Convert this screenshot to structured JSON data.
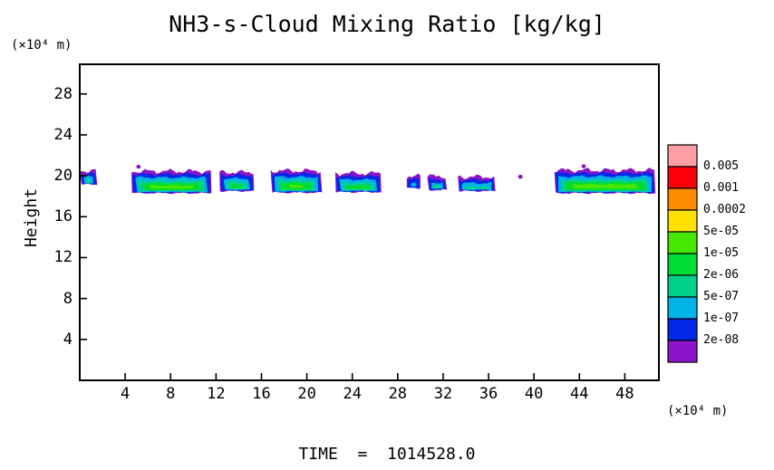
{
  "chart": {
    "title": "NH3-s-Cloud Mixing Ratio [kg/kg]",
    "y_axis_label": "Height",
    "y_unit": "(×10⁴ m)",
    "x_unit": "(×10⁴ m)"
  },
  "footer": {
    "time_label": "TIME  =  1014528.0"
  },
  "chart_data": {
    "type": "heatmap",
    "subtype": "filled-contour-cross-section",
    "title": "NH3-s-Cloud Mixing Ratio [kg/kg]",
    "ylabel": "Height",
    "ylabel_unit": "(×10⁴ m)",
    "xlabel_unit": "(×10⁴ m)",
    "xlim": [
      0,
      51
    ],
    "ylim": [
      0,
      30.9
    ],
    "x_ticks": [
      4,
      8,
      12,
      16,
      20,
      24,
      28,
      32,
      36,
      40,
      44,
      48
    ],
    "y_ticks": [
      4,
      8,
      12,
      16,
      20,
      24,
      28
    ],
    "grid": false,
    "legend": {
      "position": "right",
      "levels_top_to_bottom": [
        "0.005",
        "0.001",
        "0.0002",
        "5e-05",
        "1e-05",
        "2e-06",
        "5e-07",
        "1e-07",
        "2e-08"
      ],
      "colors_top_to_bottom": [
        "#ff9ea5",
        "#fb000c",
        "#ff8c00",
        "#ffe100",
        "#46e700",
        "#00dc32",
        "#00d28c",
        "#00b4e6",
        "#0028e6",
        "#8c14c8"
      ]
    },
    "cloud_layer_styles": [
      {
        "key": "purple",
        "color_index": 9,
        "dx": 0,
        "dtop": 0,
        "dbot": 0,
        "amp": 0.3
      },
      {
        "key": "blue",
        "color_index": 8,
        "dx": 0.1,
        "dtop": 0.3,
        "dbot": 0.05,
        "amp": 0.2
      },
      {
        "key": "cyan",
        "color_index": 7,
        "dx": 0.35,
        "dtop": 0.62,
        "dbot": 0.12,
        "amp": 0.16
      },
      {
        "key": "teal-green",
        "color_index": 6,
        "dx": 0.6,
        "dtop": 0.95,
        "dbot": 0.2,
        "amp": 0.12
      },
      {
        "key": "green",
        "color_index": 5,
        "dx": 0.95,
        "dtop": 1.18,
        "dbot": 0.28,
        "amp": 0.1
      },
      {
        "key": "bright-green",
        "color_index": 4,
        "dx": 1.6,
        "dtop": 1.38,
        "dbot": 0.45,
        "amp": 0.08
      }
    ],
    "cloud_segments": [
      {
        "x0": 0.0,
        "x1": 1.55,
        "y_top": 20.5,
        "y_bot": 19.15,
        "layers": 4,
        "seed": 3
      },
      {
        "x0": 4.55,
        "x1": 11.6,
        "y_top": 20.45,
        "y_bot": 18.3,
        "layers": 6,
        "seed": 7
      },
      {
        "x0": 5.0,
        "x1": 5.35,
        "y_top": 21.0,
        "y_bot": 20.78,
        "layers": 1,
        "seed": 51
      },
      {
        "x0": 12.3,
        "x1": 15.35,
        "y_top": 20.35,
        "y_bot": 18.5,
        "layers": 5,
        "seed": 11
      },
      {
        "x0": 16.8,
        "x1": 21.35,
        "y_top": 20.5,
        "y_bot": 18.35,
        "layers": 6,
        "seed": 17
      },
      {
        "x0": 22.5,
        "x1": 26.55,
        "y_top": 20.25,
        "y_bot": 18.4,
        "layers": 5,
        "seed": 23
      },
      {
        "x0": 28.8,
        "x1": 30.0,
        "y_top": 19.95,
        "y_bot": 18.8,
        "layers": 4,
        "seed": 29
      },
      {
        "x0": 30.6,
        "x1": 32.35,
        "y_top": 19.95,
        "y_bot": 18.6,
        "layers": 5,
        "seed": 31
      },
      {
        "x0": 33.3,
        "x1": 36.6,
        "y_top": 19.9,
        "y_bot": 18.5,
        "layers": 5,
        "seed": 37
      },
      {
        "x0": 38.6,
        "x1": 39.0,
        "y_top": 20.05,
        "y_bot": 19.75,
        "layers": 1,
        "seed": 41
      },
      {
        "x0": 41.8,
        "x1": 50.7,
        "y_top": 20.55,
        "y_bot": 18.3,
        "layers": 6,
        "seed": 43
      },
      {
        "x0": 44.2,
        "x1": 44.55,
        "y_top": 21.05,
        "y_bot": 20.82,
        "layers": 1,
        "seed": 53
      }
    ]
  }
}
